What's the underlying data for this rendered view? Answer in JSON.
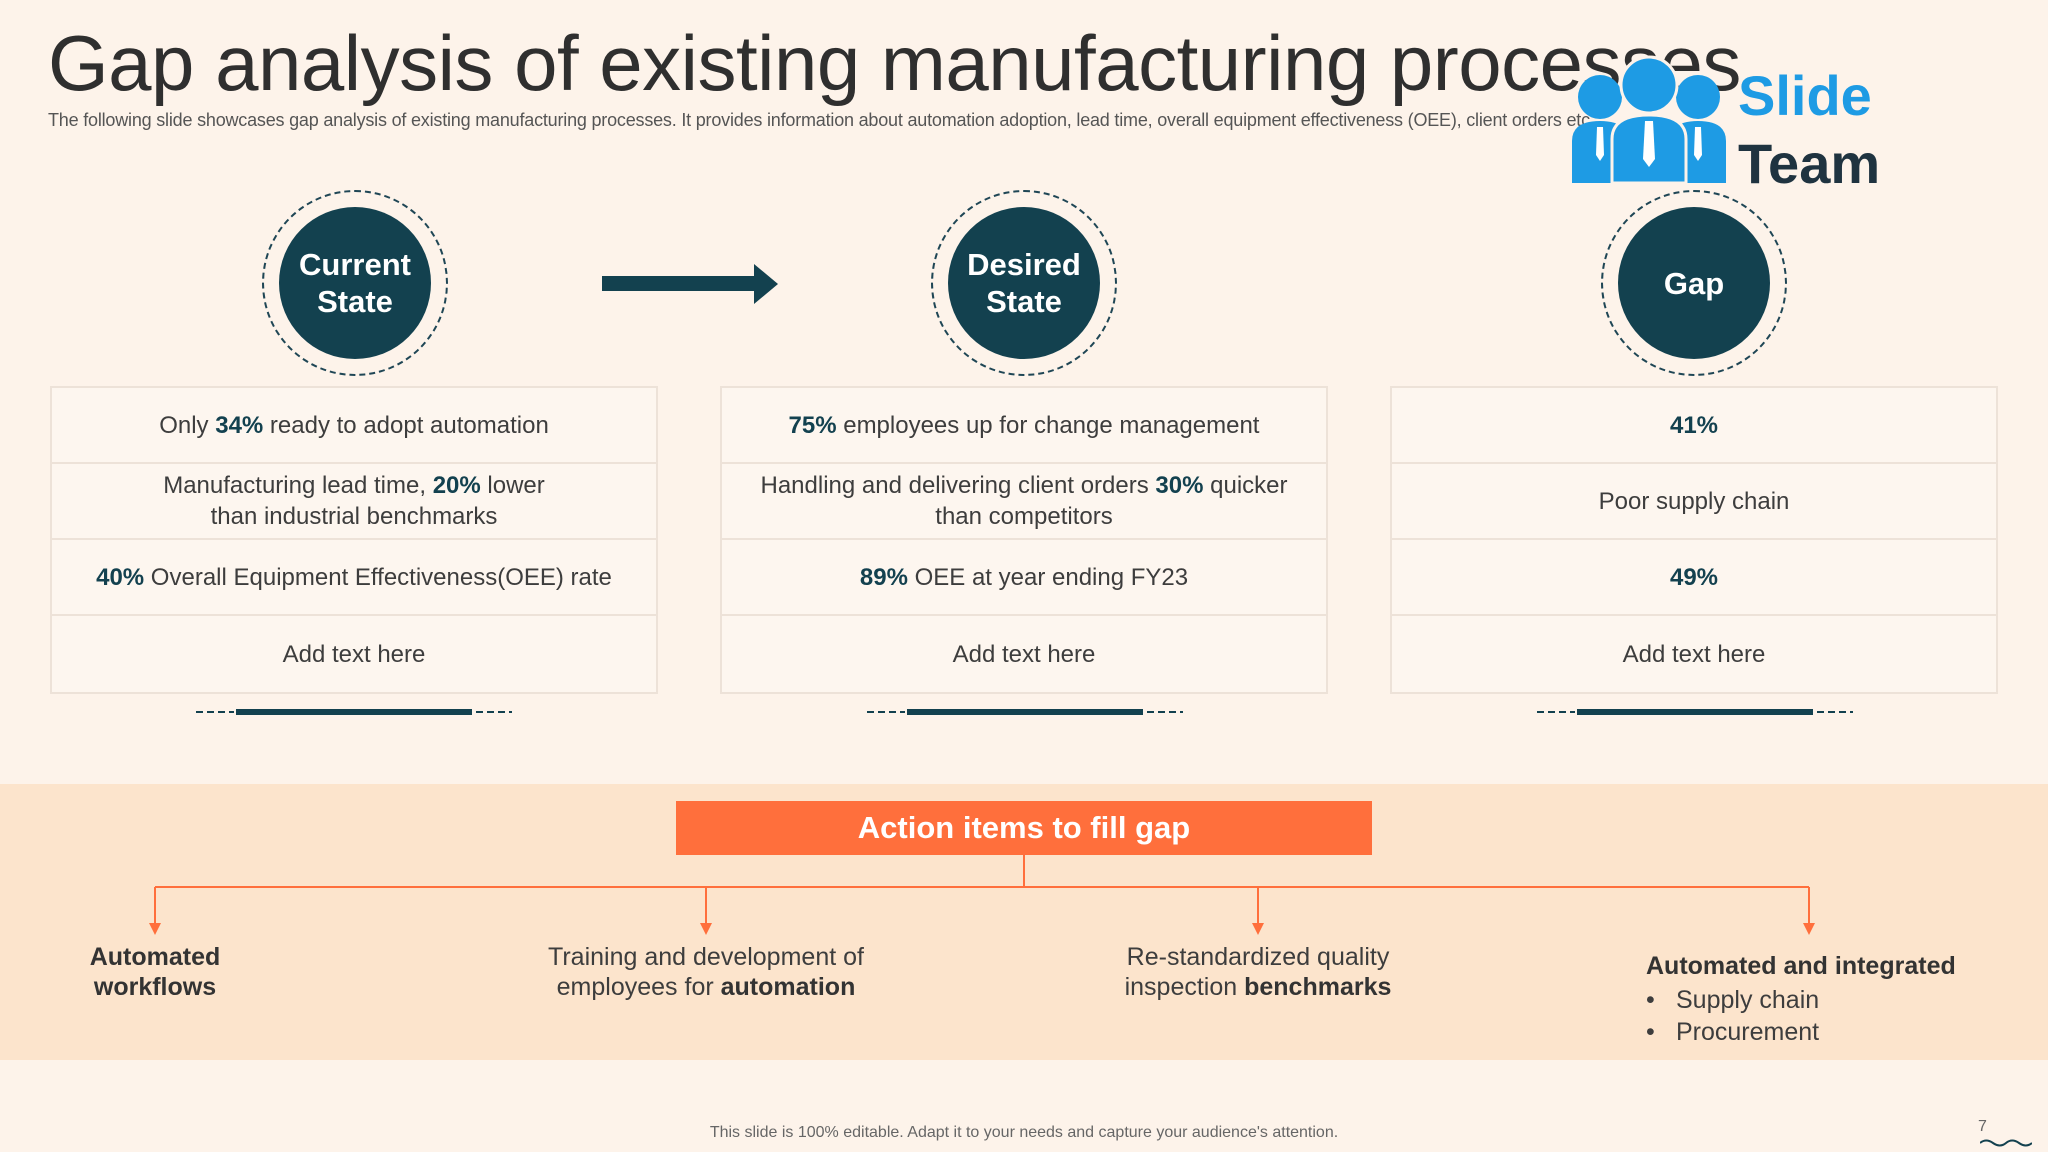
{
  "slide": {
    "title": "Gap analysis of existing manufacturing processes",
    "subtitle": "The following slide showcases gap analysis of existing manufacturing processes. It provides information about automation adoption, lead time, overall equipment effectiveness (OEE), client orders etc."
  },
  "logo": {
    "word1": "Slide",
    "word2": "Team"
  },
  "columns": [
    {
      "heading": "Current\nState",
      "rows": [
        {
          "pre": "Only ",
          "bold": "34%",
          "post": " ready to adopt automation"
        },
        {
          "pre": "Manufacturing lead time, ",
          "bold": "20%",
          "post": " lower",
          "line2": "than industrial benchmarks"
        },
        {
          "pre": "",
          "bold": "40%",
          "post": " Overall Equipment Effectiveness(OEE) rate"
        },
        {
          "pre": "Add text here",
          "bold": "",
          "post": ""
        }
      ]
    },
    {
      "heading": "Desired\nState",
      "rows": [
        {
          "pre": "",
          "bold": "75%",
          "post": " employees up for change management"
        },
        {
          "pre": "Handling and delivering client orders ",
          "bold": "30%",
          "post": " quicker",
          "line2": "than competitors"
        },
        {
          "pre": "",
          "bold": "89%",
          "post": " OEE at year ending FY23"
        },
        {
          "pre": "Add text here",
          "bold": "",
          "post": ""
        }
      ]
    },
    {
      "heading": "Gap",
      "rows": [
        {
          "pre": "",
          "bold": "41%",
          "post": ""
        },
        {
          "pre": "Poor supply chain",
          "bold": "",
          "post": ""
        },
        {
          "pre": "",
          "bold": "49%",
          "post": ""
        },
        {
          "pre": "Add text here",
          "bold": "",
          "post": ""
        }
      ]
    }
  ],
  "action": {
    "title": "Action items to fill gap",
    "items": [
      {
        "bold1": "Automated",
        "bold2": "workflows"
      },
      {
        "line1": "Training and development of",
        "pre2": "employees for ",
        "bold2": "automation"
      },
      {
        "line1": "Re-standardized quality",
        "pre2": "inspection ",
        "bold2": "benchmarks"
      },
      {
        "head": "Automated and integrated",
        "bullets": [
          "Supply chain",
          "Procurement"
        ]
      }
    ]
  },
  "footer": {
    "note": "This slide is 100% editable. Adapt it to your needs and capture your audience's attention.",
    "page": "7"
  },
  "colors": {
    "background": "#fdf3ea",
    "dark_teal": "#13414f",
    "orange": "#ff6f3c",
    "band": "#fce4cc",
    "logo_blue": "#1e9be4"
  },
  "icons": [
    "people-group-icon",
    "right-arrow-icon"
  ]
}
